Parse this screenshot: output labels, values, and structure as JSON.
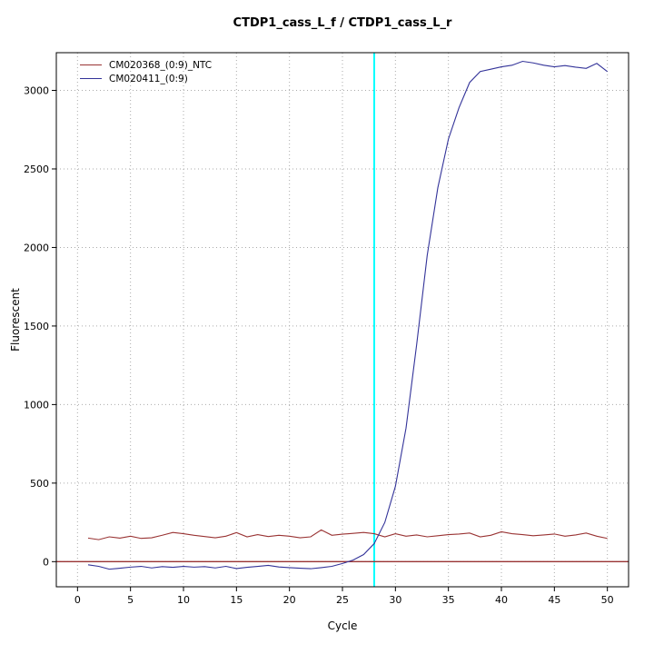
{
  "page": {
    "title": "CTDP1_cass_L_f / CTDP1_cass_L_r"
  },
  "chart_data": {
    "type": "line",
    "title": "CTDP1_cass_L_f / CTDP1_cass_L_r",
    "xlabel": "Cycle",
    "ylabel": "Fluorescent",
    "xlim": [
      -2,
      52
    ],
    "ylim": [
      -160,
      3240
    ],
    "x_ticks": [
      0,
      5,
      10,
      15,
      20,
      25,
      30,
      35,
      40,
      45,
      50
    ],
    "y_ticks": [
      0,
      500,
      1000,
      1500,
      2000,
      2500,
      3000
    ],
    "grid": true,
    "legend_position": "top-left",
    "x": [
      1,
      2,
      3,
      4,
      5,
      6,
      7,
      8,
      9,
      10,
      11,
      12,
      13,
      14,
      15,
      16,
      17,
      18,
      19,
      20,
      21,
      22,
      23,
      24,
      25,
      26,
      27,
      28,
      29,
      30,
      31,
      32,
      33,
      34,
      35,
      36,
      37,
      38,
      39,
      40,
      41,
      42,
      43,
      44,
      45,
      46,
      47,
      48,
      49,
      50
    ],
    "series": [
      {
        "name": "CM020368_(0:9)_NTC",
        "color": "#993333",
        "values": [
          150,
          140,
          158,
          150,
          162,
          148,
          152,
          168,
          186,
          178,
          168,
          160,
          152,
          162,
          185,
          158,
          172,
          160,
          168,
          162,
          152,
          158,
          202,
          168,
          175,
          180,
          186,
          178,
          158,
          178,
          162,
          170,
          158,
          165,
          172,
          176,
          182,
          158,
          168,
          190,
          178,
          172,
          165,
          170,
          176,
          162,
          170,
          182,
          162,
          148
        ]
      },
      {
        "name": "CM020411_(0:9)",
        "color": "#333399",
        "values": [
          -20,
          -30,
          -48,
          -42,
          -35,
          -30,
          -40,
          -32,
          -36,
          -30,
          -35,
          -32,
          -40,
          -30,
          -44,
          -36,
          -30,
          -24,
          -34,
          -38,
          -42,
          -45,
          -38,
          -30,
          -12,
          10,
          45,
          115,
          250,
          480,
          850,
          1380,
          1950,
          2380,
          2690,
          2890,
          3050,
          3120,
          3135,
          3150,
          3160,
          3185,
          3175,
          3160,
          3150,
          3158,
          3148,
          3140,
          3172,
          3120
        ]
      }
    ],
    "threshold_line": {
      "y": 0,
      "color": "#993333"
    },
    "vline": {
      "x": 28,
      "color": "#00ffff"
    },
    "grid_color": "#aaaaaa",
    "box_color": "#000000"
  }
}
